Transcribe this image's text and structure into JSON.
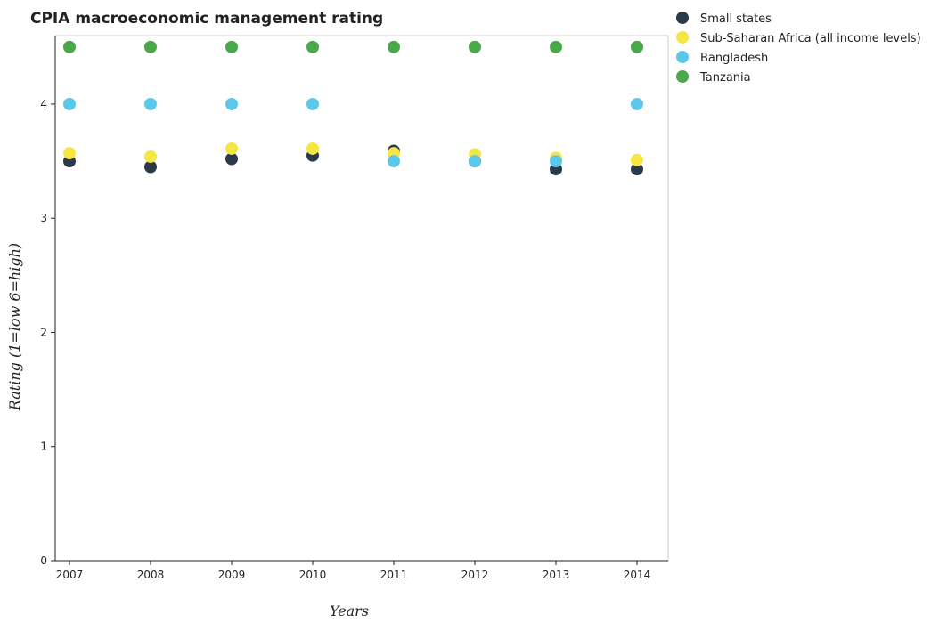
{
  "chart_data": {
    "type": "scatter",
    "title": "CPIA macroeconomic management rating",
    "xlabel": "Years",
    "ylabel": "Rating (1=low 6=high)",
    "x": [
      "2007",
      "2008",
      "2009",
      "2010",
      "2011",
      "2012",
      "2013",
      "2014"
    ],
    "ylim": [
      0,
      4.6
    ],
    "yticks": [
      0,
      1,
      2,
      3,
      4
    ],
    "grid": false,
    "legend_position": "top-right",
    "series": [
      {
        "name": "Small states",
        "color": "#2b3a4a",
        "values": [
          3.5,
          3.45,
          3.52,
          3.55,
          3.59,
          3.5,
          3.43,
          3.43
        ]
      },
      {
        "name": "Sub-Saharan Africa (all income levels)",
        "color": "#f5e642",
        "values": [
          3.57,
          3.54,
          3.61,
          3.61,
          3.57,
          3.56,
          3.53,
          3.51
        ]
      },
      {
        "name": "Bangladesh",
        "color": "#5bc8ea",
        "values": [
          4.0,
          4.0,
          4.0,
          4.0,
          3.5,
          3.5,
          3.5,
          4.0
        ]
      },
      {
        "name": "Tanzania",
        "color": "#4aa84a",
        "values": [
          4.5,
          4.5,
          4.5,
          4.5,
          4.5,
          4.5,
          4.5,
          4.5
        ]
      }
    ]
  }
}
